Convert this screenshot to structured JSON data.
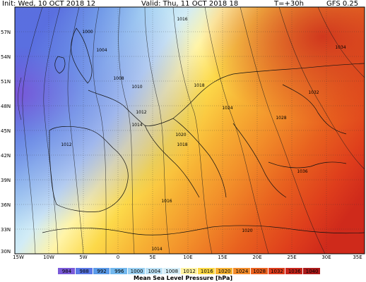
{
  "header": {
    "init": "Init: Wed, 10 OCT 2018  12",
    "valid": "Valid: Thu, 11 OCT 2018  18",
    "lead": "T=+30h",
    "model": "GFS 0.25"
  },
  "axes": {
    "lat": [
      "57N",
      "54N",
      "51N",
      "48N",
      "45N",
      "42N",
      "39N",
      "36N",
      "33N",
      "30N"
    ],
    "lon": [
      "15W",
      "10W",
      "5W",
      "0",
      "5E",
      "10E",
      "15E",
      "20E",
      "25E",
      "30E",
      "35E"
    ]
  },
  "isobar_labels": [
    "1000",
    "1004",
    "1008",
    "1010",
    "1012",
    "1014",
    "1016",
    "1018",
    "1020",
    "1024",
    "1028",
    "1032",
    "1034",
    "1036",
    "1018",
    "1016",
    "1014",
    "1012",
    "1020"
  ],
  "legend": {
    "values": [
      "984",
      "988",
      "992",
      "996",
      "1000",
      "1004",
      "1008",
      "1012",
      "1016",
      "1020",
      "1024",
      "1028",
      "1032",
      "1036",
      "1040"
    ],
    "colors": [
      "#7a5ad8",
      "#5a78e6",
      "#5a9ae8",
      "#72b8ee",
      "#9ad0f2",
      "#bde2f6",
      "#d6eef8",
      "#fff2a0",
      "#fbd846",
      "#f6b233",
      "#f28b2a",
      "#e9601f",
      "#dd3c1d",
      "#c9261c",
      "#ab1a1a"
    ],
    "title": "Mean Sea Level Pressure [hPa]"
  }
}
